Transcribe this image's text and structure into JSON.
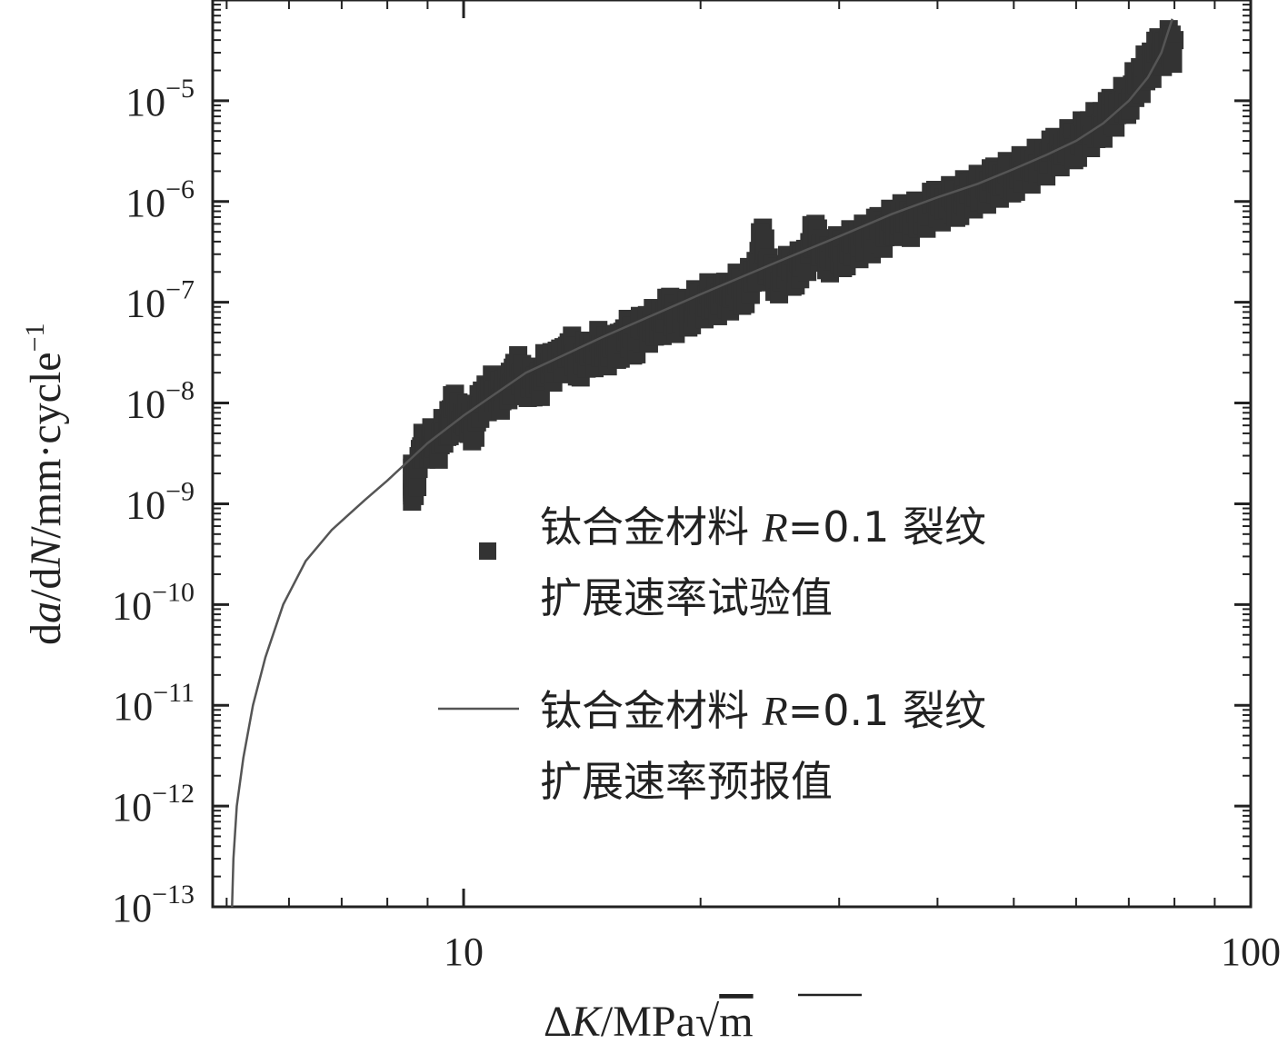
{
  "chart_data": {
    "type": "scatter",
    "title": "",
    "xlabel": "ΔK/MPa√m",
    "xlabel_parts": {
      "delta": "Δ",
      "var": "K",
      "unit": "/MPa",
      "root": "√",
      "root_arg": "m"
    },
    "ylabel": "da/dN/mm·cycle⁻¹",
    "ylabel_parts": {
      "d1": "d",
      "a": "a",
      "slash1": "/d",
      "N": "N",
      "unit": "/mm·cycle",
      "exp": "−1"
    },
    "x_scale": "log",
    "y_scale": "log",
    "xlim": [
      4.8,
      100
    ],
    "ylim": [
      1e-13,
      0.0001
    ],
    "x_ticks": [
      {
        "value": 10,
        "label": "10"
      },
      {
        "value": 100,
        "label": "100"
      }
    ],
    "y_ticks": [
      {
        "value": 1e-13,
        "base": "10",
        "exp": "−13"
      },
      {
        "value": 1e-12,
        "base": "10",
        "exp": "−12"
      },
      {
        "value": 1e-11,
        "base": "10",
        "exp": "−11"
      },
      {
        "value": 1e-10,
        "base": "10",
        "exp": "−10"
      },
      {
        "value": 1e-09,
        "base": "10",
        "exp": "−9"
      },
      {
        "value": 1e-08,
        "base": "10",
        "exp": "−8"
      },
      {
        "value": 1e-07,
        "base": "10",
        "exp": "−7"
      },
      {
        "value": 1e-06,
        "base": "10",
        "exp": "−6"
      },
      {
        "value": 1e-05,
        "base": "10",
        "exp": "−5"
      }
    ],
    "series": [
      {
        "name": "钛合金材料 R=0.1 裂纹扩展速率试验值",
        "kind": "scatter",
        "marker": "square",
        "color": "#333333",
        "points": [
          [
            8.6,
            2.5e-09
          ],
          [
            8.6,
            1.3e-09
          ],
          [
            8.8,
            3.5e-09
          ],
          [
            9.0,
            5e-09
          ],
          [
            9.2,
            4e-09
          ],
          [
            9.5,
            6.5e-09
          ],
          [
            9.7,
            1e-08
          ],
          [
            10.0,
            8e-09
          ],
          [
            10.3,
            7e-09
          ],
          [
            10.6,
            1.3e-08
          ],
          [
            11.0,
            1.6e-08
          ],
          [
            11.3,
            1.3e-08
          ],
          [
            11.6,
            2.5e-08
          ],
          [
            12.0,
            2e-08
          ],
          [
            12.4,
            1.6e-08
          ],
          [
            12.8,
            3e-08
          ],
          [
            13.2,
            2.5e-08
          ],
          [
            13.6,
            4e-08
          ],
          [
            14.0,
            3e-08
          ],
          [
            14.5,
            3.5e-08
          ],
          [
            15.0,
            4.5e-08
          ],
          [
            15.5,
            3.5e-08
          ],
          [
            16.0,
            5.5e-08
          ],
          [
            16.5,
            5e-08
          ],
          [
            17.0,
            6.5e-08
          ],
          [
            17.6,
            7e-08
          ],
          [
            18.2,
            9e-08
          ],
          [
            18.8,
            8e-08
          ],
          [
            19.4,
            1e-07
          ],
          [
            20.0,
            1.1e-07
          ],
          [
            20.7,
            1.3e-07
          ],
          [
            21.4,
            1.2e-07
          ],
          [
            22.0,
            1.5e-07
          ],
          [
            22.7,
            1.6e-07
          ],
          [
            23.4,
            1.9e-07
          ],
          [
            24.0,
            5.5e-07
          ],
          [
            24.5,
            1.8e-07
          ],
          [
            25.5,
            2.2e-07
          ],
          [
            26.3,
            2.5e-07
          ],
          [
            27.0,
            2.6e-07
          ],
          [
            28.0,
            6e-07
          ],
          [
            28.6,
            3e-07
          ],
          [
            29.5,
            3.5e-07
          ],
          [
            30.5,
            3.8e-07
          ],
          [
            31.5,
            4.5e-07
          ],
          [
            32.5,
            4.8e-07
          ],
          [
            33.5,
            5.5e-07
          ],
          [
            34.5,
            6e-07
          ],
          [
            35.5,
            8e-07
          ],
          [
            36.5,
            7e-07
          ],
          [
            38.0,
            8.5e-07
          ],
          [
            39.5,
            1e-06
          ],
          [
            41.0,
            1.1e-06
          ],
          [
            42.5,
            1.2e-06
          ],
          [
            44.0,
            1.4e-06
          ],
          [
            45.5,
            1.5e-06
          ],
          [
            47.0,
            1.7e-06
          ],
          [
            48.5,
            1.9e-06
          ],
          [
            50.0,
            2.1e-06
          ],
          [
            52.0,
            2.4e-06
          ],
          [
            54.0,
            2.8e-06
          ],
          [
            56.0,
            3.3e-06
          ],
          [
            58.0,
            4e-06
          ],
          [
            60.0,
            4.5e-06
          ],
          [
            62.0,
            5.5e-06
          ],
          [
            64.0,
            6.5e-06
          ],
          [
            66.0,
            8e-06
          ],
          [
            68.0,
            1e-05
          ],
          [
            70.0,
            1.3e-05
          ],
          [
            72.0,
            1.8e-05
          ],
          [
            74.0,
            2.5e-05
          ],
          [
            76.0,
            3.2e-05
          ],
          [
            78.0,
            4e-05
          ],
          [
            80.0,
            4e-05
          ]
        ]
      },
      {
        "name": "钛合金材料 R=0.1 裂纹扩展速率预报值",
        "kind": "line",
        "color": "#555555",
        "points": [
          [
            5.08,
            1e-13
          ],
          [
            5.1,
            3e-13
          ],
          [
            5.15,
            1e-12
          ],
          [
            5.25,
            3e-12
          ],
          [
            5.4,
            1e-11
          ],
          [
            5.6,
            3e-11
          ],
          [
            5.9,
            1e-10
          ],
          [
            6.3,
            2.7e-10
          ],
          [
            6.8,
            5.5e-10
          ],
          [
            7.5,
            1.1e-09
          ],
          [
            8.0,
            1.7e-09
          ],
          [
            9.0,
            4e-09
          ],
          [
            10.0,
            7.5e-09
          ],
          [
            12.0,
            2e-08
          ],
          [
            15.0,
            4.5e-08
          ],
          [
            20.0,
            1.2e-07
          ],
          [
            25.0,
            2.5e-07
          ],
          [
            30.0,
            4.5e-07
          ],
          [
            35.0,
            7.5e-07
          ],
          [
            40.0,
            1.1e-06
          ],
          [
            45.0,
            1.5e-06
          ],
          [
            50.0,
            2.1e-06
          ],
          [
            55.0,
            2.9e-06
          ],
          [
            60.0,
            4e-06
          ],
          [
            65.0,
            6e-06
          ],
          [
            70.0,
            1e-05
          ],
          [
            74.0,
            1.7e-05
          ],
          [
            77.0,
            3e-05
          ],
          [
            79.5,
            6.5e-05
          ]
        ]
      }
    ],
    "legend": {
      "position": "center-right",
      "entries": [
        {
          "marker": "square",
          "line1_pre": "钛合金材料 ",
          "line1_var": "R",
          "line1_post": "=0.1 裂纹",
          "line2": "扩展速率试验值"
        },
        {
          "marker": "line",
          "line1_pre": "钛合金材料 ",
          "line1_var": "R",
          "line1_post": "=0.1 裂纹",
          "line2": "扩展速率预报值"
        }
      ]
    },
    "grid": false
  }
}
